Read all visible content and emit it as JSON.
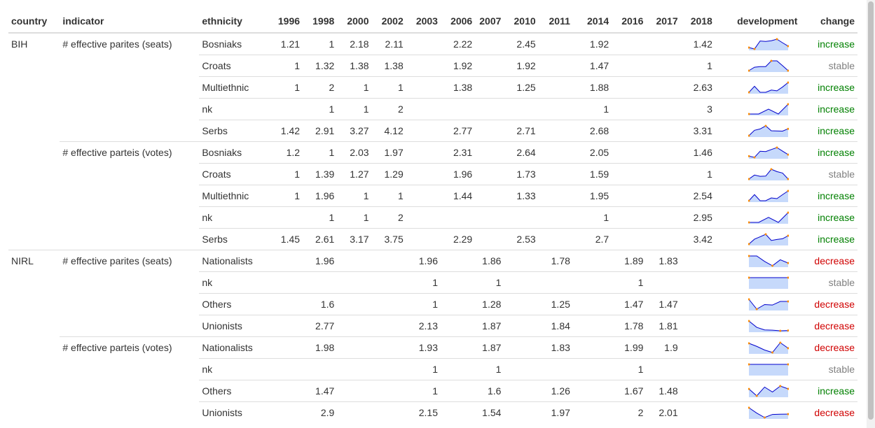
{
  "columns": {
    "country": "country",
    "indicator": "indicator",
    "ethnicity": "ethnicity",
    "years": [
      "1996",
      "1998",
      "2000",
      "2002",
      "2003",
      "2006",
      "2007",
      "2010",
      "2011",
      "2014",
      "2016",
      "2017",
      "2018"
    ],
    "development": "development",
    "change": "change"
  },
  "rows": [
    {
      "country": "BIH",
      "indicator": "# effective parites (seats)",
      "ethnicity": "Bosniaks",
      "values": [
        "1.21",
        "1",
        "2.18",
        "2.11",
        "",
        "2.22",
        "",
        "2.45",
        "",
        "1.92",
        "",
        "",
        "1.42"
      ],
      "change": "increase"
    },
    {
      "country": "",
      "indicator": "",
      "ethnicity": "Croats",
      "values": [
        "1",
        "1.32",
        "1.38",
        "1.38",
        "",
        "1.92",
        "",
        "1.92",
        "",
        "1.47",
        "",
        "",
        "1"
      ],
      "change": "stable"
    },
    {
      "country": "",
      "indicator": "",
      "ethnicity": "Multiethnic",
      "values": [
        "1",
        "2",
        "1",
        "1",
        "",
        "1.38",
        "",
        "1.25",
        "",
        "1.88",
        "",
        "",
        "2.63"
      ],
      "change": "increase"
    },
    {
      "country": "",
      "indicator": "",
      "ethnicity": "nk",
      "values": [
        "",
        "1",
        "1",
        "2",
        "",
        "",
        "",
        "",
        "",
        "1",
        "",
        "",
        "3"
      ],
      "change": "increase"
    },
    {
      "country": "",
      "indicator": "",
      "ethnicity": "Serbs",
      "values": [
        "1.42",
        "2.91",
        "3.27",
        "4.12",
        "",
        "2.77",
        "",
        "2.71",
        "",
        "2.68",
        "",
        "",
        "3.31"
      ],
      "change": "increase"
    },
    {
      "country": "",
      "indicator": "# effective parteis (votes)",
      "ethnicity": "Bosniaks",
      "values": [
        "1.2",
        "1",
        "2.03",
        "1.97",
        "",
        "2.31",
        "",
        "2.64",
        "",
        "2.05",
        "",
        "",
        "1.46"
      ],
      "change": "increase"
    },
    {
      "country": "",
      "indicator": "",
      "ethnicity": "Croats",
      "values": [
        "1",
        "1.39",
        "1.27",
        "1.29",
        "",
        "1.96",
        "",
        "1.73",
        "",
        "1.59",
        "",
        "",
        "1"
      ],
      "change": "stable"
    },
    {
      "country": "",
      "indicator": "",
      "ethnicity": "Multiethnic",
      "values": [
        "1",
        "1.96",
        "1",
        "1",
        "",
        "1.44",
        "",
        "1.33",
        "",
        "1.95",
        "",
        "",
        "2.54"
      ],
      "change": "increase"
    },
    {
      "country": "",
      "indicator": "",
      "ethnicity": "nk",
      "values": [
        "",
        "1",
        "1",
        "2",
        "",
        "",
        "",
        "",
        "",
        "1",
        "",
        "",
        "2.95"
      ],
      "change": "increase"
    },
    {
      "country": "",
      "indicator": "",
      "ethnicity": "Serbs",
      "values": [
        "1.45",
        "2.61",
        "3.17",
        "3.75",
        "",
        "2.29",
        "",
        "2.53",
        "",
        "2.7",
        "",
        "",
        "3.42"
      ],
      "change": "increase"
    },
    {
      "country": "NIRL",
      "indicator": "# effective parites (seats)",
      "ethnicity": "Nationalists",
      "values": [
        "",
        "1.96",
        "",
        "",
        "1.96",
        "",
        "1.86",
        "",
        "1.78",
        "",
        "1.89",
        "1.83",
        ""
      ],
      "change": "decrease"
    },
    {
      "country": "",
      "indicator": "",
      "ethnicity": "nk",
      "values": [
        "",
        "",
        "",
        "",
        "1",
        "",
        "1",
        "",
        "",
        "",
        "1",
        "",
        ""
      ],
      "change": "stable"
    },
    {
      "country": "",
      "indicator": "",
      "ethnicity": "Others",
      "values": [
        "",
        "1.6",
        "",
        "",
        "1",
        "",
        "1.28",
        "",
        "1.25",
        "",
        "1.47",
        "1.47",
        ""
      ],
      "change": "decrease"
    },
    {
      "country": "",
      "indicator": "",
      "ethnicity": "Unionists",
      "values": [
        "",
        "2.77",
        "",
        "",
        "2.13",
        "",
        "1.87",
        "",
        "1.84",
        "",
        "1.78",
        "1.81",
        ""
      ],
      "change": "decrease"
    },
    {
      "country": "",
      "indicator": "# effective parteis (votes)",
      "ethnicity": "Nationalists",
      "values": [
        "",
        "1.98",
        "",
        "",
        "1.93",
        "",
        "1.87",
        "",
        "1.83",
        "",
        "1.99",
        "1.9",
        ""
      ],
      "change": "decrease"
    },
    {
      "country": "",
      "indicator": "",
      "ethnicity": "nk",
      "values": [
        "",
        "",
        "",
        "",
        "1",
        "",
        "1",
        "",
        "",
        "",
        "1",
        "",
        ""
      ],
      "change": "stable"
    },
    {
      "country": "",
      "indicator": "",
      "ethnicity": "Others",
      "values": [
        "",
        "1.47",
        "",
        "",
        "1",
        "",
        "1.6",
        "",
        "1.26",
        "",
        "1.67",
        "1.48",
        ""
      ],
      "change": "increase"
    },
    {
      "country": "",
      "indicator": "",
      "ethnicity": "Unionists",
      "values": [
        "",
        "2.9",
        "",
        "",
        "2.15",
        "",
        "1.54",
        "",
        "1.97",
        "",
        "2",
        "2.01",
        ""
      ],
      "change": "decrease"
    }
  ],
  "colors": {
    "spark_fill": "#c6d9fb",
    "spark_line": "#0000cc",
    "spark_dot": "#ff8c00",
    "increase": "#008000",
    "stable": "#808080",
    "decrease": "#d00000"
  }
}
